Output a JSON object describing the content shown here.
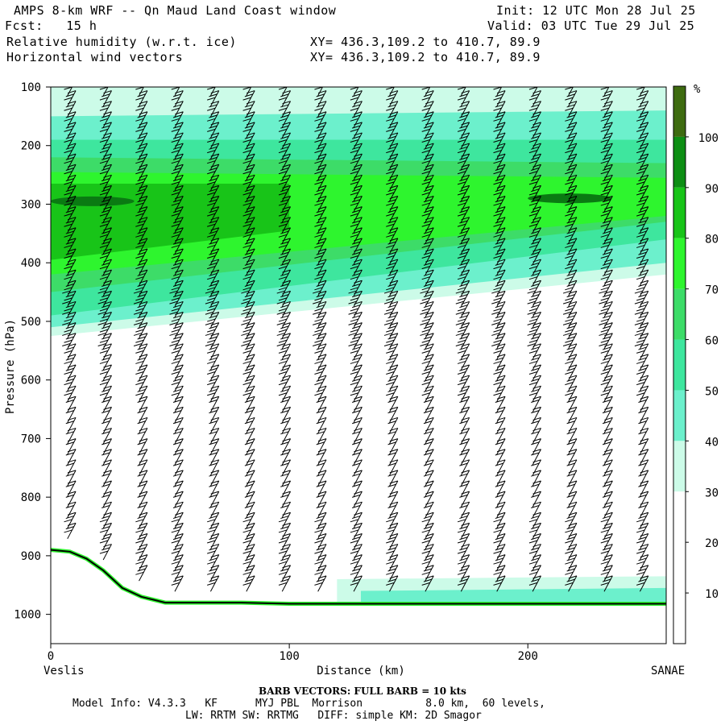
{
  "header": {
    "title": "AMPS 8-km WRF -- Qn Maud Land Coast window",
    "fcst": "Fcst:   15 h",
    "init": "Init: 12 UTC Mon 28 Jul 25",
    "valid": "Valid: 03 UTC Tue 29 Jul 25",
    "field1": "Relative humidity (w.r.t. ice)",
    "field2": "Horizontal wind vectors",
    "xy1": "XY= 436.3,109.2 to 410.7, 89.9",
    "xy2": "XY= 436.3,109.2 to 410.7, 89.9"
  },
  "footer": {
    "barb_note": "BARB VECTORS:  FULL BARB = 10 kts",
    "model_info_line1": "Model Info: V4.3.3   KF      MYJ PBL  Morrison          8.0 km,  60 levels,",
    "model_info_line2": "LW: RRTM SW: RRTMG   DIFF: simple KM: 2D Smagor"
  },
  "chart_data": {
    "type": "cross-section",
    "xlabel": "Distance (km)",
    "ylabel": "Pressure (hPa)",
    "x_left_label": "Veslis",
    "x_right_label": "SANAE",
    "xlim": [
      0,
      258
    ],
    "ylim": [
      1050,
      100
    ],
    "x_ticks": [
      0,
      100,
      200
    ],
    "y_ticks": [
      100,
      200,
      300,
      400,
      500,
      600,
      700,
      800,
      900,
      1000
    ],
    "colorbar": {
      "unit": "%",
      "ticks": [
        10,
        20,
        30,
        40,
        50,
        60,
        70,
        80,
        90,
        100
      ],
      "levels": [
        0,
        30,
        40,
        50,
        60,
        70,
        80,
        90,
        100,
        110
      ],
      "colors": [
        "#ffffff",
        "#ccfbe8",
        "#6cf0cc",
        "#3ee69e",
        "#3ddc68",
        "#2ef52e",
        "#18c418",
        "#0d8e14",
        "#3e6b10"
      ]
    },
    "terrain_profile": {
      "x_km": [
        0,
        8,
        15,
        22,
        30,
        38,
        48,
        60,
        80,
        100,
        140,
        200,
        258
      ],
      "pressure_hPa": [
        890,
        893,
        905,
        925,
        955,
        970,
        980,
        980,
        980,
        982,
        982,
        982,
        982
      ]
    },
    "rh_bands": [
      {
        "label": "30-40",
        "x_km": [
          0,
          258
        ],
        "top_hPa": [
          100,
          100
        ],
        "bottom_hPa": [
          525,
          420
        ]
      },
      {
        "label": "40-50",
        "x_km": [
          0,
          258
        ],
        "top_hPa": [
          150,
          140
        ],
        "bottom_hPa": [
          510,
          400
        ]
      },
      {
        "label": "50-60",
        "x_km": [
          0,
          258
        ],
        "top_hPa": [
          190,
          190
        ],
        "bottom_hPa": [
          490,
          360
        ]
      },
      {
        "label": "60-70",
        "x_km": [
          0,
          258
        ],
        "top_hPa": [
          220,
          230
        ],
        "bottom_hPa": [
          450,
          330
        ]
      },
      {
        "label": "70-80",
        "x_km": [
          0,
          258
        ],
        "top_hPa": [
          245,
          255
        ],
        "bottom_hPa": [
          420,
          320
        ]
      },
      {
        "label": "80-90",
        "x_km": [
          0,
          100
        ],
        "top_hPa": [
          265,
          265
        ],
        "bottom_hPa": [
          395,
          345
        ]
      },
      {
        "label": "90-100",
        "x_km": [
          0,
          35
        ],
        "top_hPa": [
          290,
          290
        ],
        "bottom_hPa": [
          300,
          300
        ]
      },
      {
        "label": "90-100 (right)",
        "x_km": [
          200,
          235
        ],
        "top_hPa": [
          285,
          285
        ],
        "bottom_hPa": [
          295,
          295
        ]
      },
      {
        "label": "30-40 low",
        "x_km": [
          120,
          258
        ],
        "top_hPa": [
          940,
          935
        ],
        "bottom_hPa": [
          980,
          980
        ]
      },
      {
        "label": "40-50 low",
        "x_km": [
          130,
          258
        ],
        "top_hPa": [
          960,
          955
        ],
        "bottom_hPa": [
          980,
          980
        ]
      }
    ],
    "wind_barb_columns_x_km": [
      7,
      22,
      37,
      52,
      67,
      82,
      97,
      112,
      127,
      142,
      157,
      172,
      187,
      202,
      217,
      232,
      247
    ],
    "wind_profile": {
      "pressure_hPa": [
        120,
        200,
        300,
        400,
        500,
        600,
        700,
        800,
        900
      ],
      "speed_kts": [
        30,
        30,
        30,
        30,
        40,
        30,
        20,
        20,
        30
      ]
    }
  }
}
